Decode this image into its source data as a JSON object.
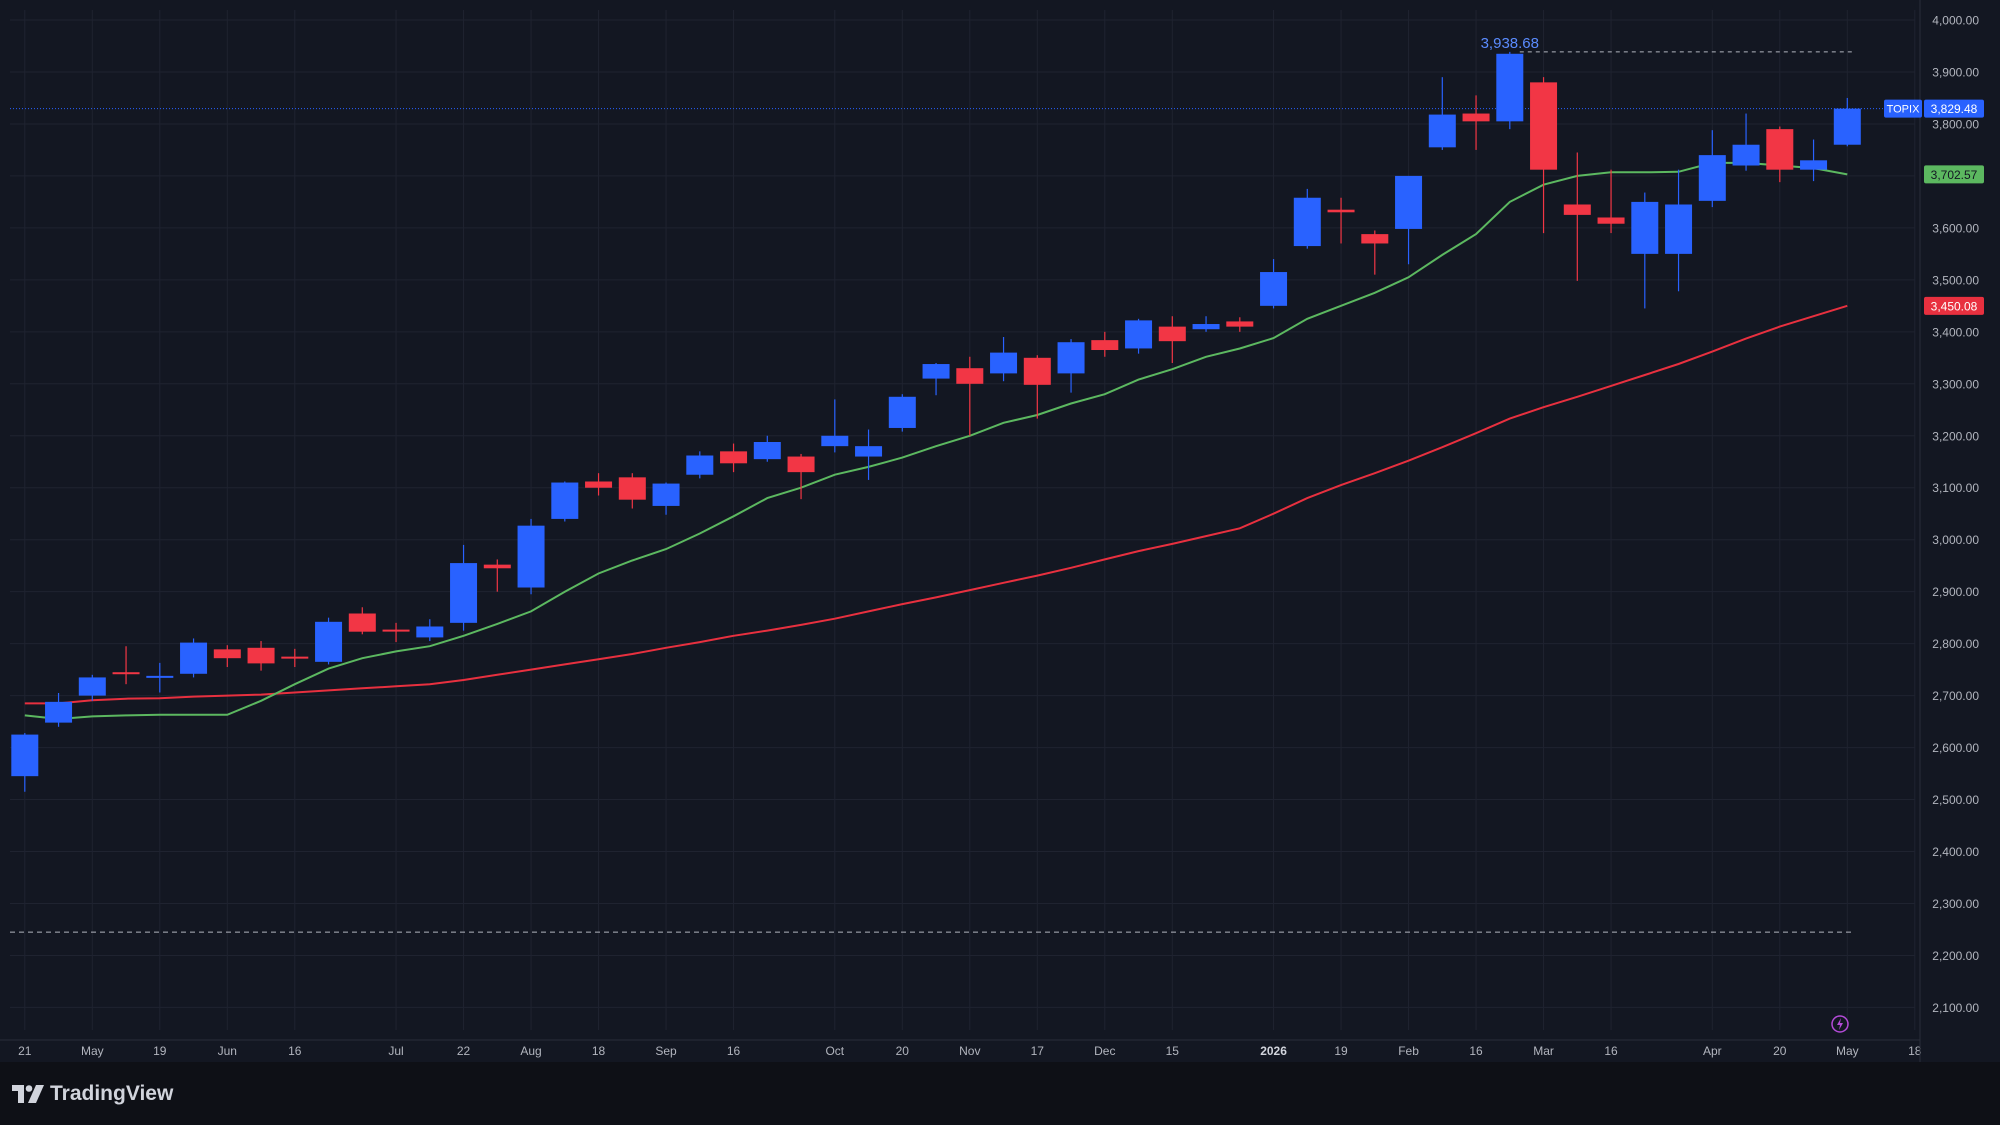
{
  "brand": {
    "name": "TradingView",
    "logo_icon": "tradingview-logo-icon"
  },
  "colors": {
    "background": "#131722",
    "grid": "#1f2330",
    "candle_up": "#2962ff",
    "candle_down": "#f23645",
    "ma_fast": "#5cb860",
    "ma_slow": "#e8303f",
    "axis_text": "#b2b5be"
  },
  "chart_data": {
    "type": "candlestick",
    "symbol": "TOPIX",
    "last_price": "3,829.48",
    "interval": "weekly",
    "ylim": [
      2060,
      4050
    ],
    "y_ticks": [
      "2,100.00",
      "2,200.00",
      "2,300.00",
      "2,400.00",
      "2,500.00",
      "2,600.00",
      "2,700.00",
      "2,800.00",
      "2,900.00",
      "3,000.00",
      "3,100.00",
      "3,200.00",
      "3,300.00",
      "3,400.00",
      "3,500.00",
      "3,600.00",
      "3,700.00",
      "3,800.00",
      "3,900.00",
      "4,000.00"
    ],
    "x_ticks": [
      {
        "label": "21",
        "index": 0
      },
      {
        "label": "May",
        "index": 2
      },
      {
        "label": "19",
        "index": 4
      },
      {
        "label": "Jun",
        "index": 6
      },
      {
        "label": "16",
        "index": 8
      },
      {
        "label": "Jul",
        "index": 11
      },
      {
        "label": "22",
        "index": 13
      },
      {
        "label": "Aug",
        "index": 15
      },
      {
        "label": "18",
        "index": 17
      },
      {
        "label": "Sep",
        "index": 19
      },
      {
        "label": "16",
        "index": 21
      },
      {
        "label": "Oct",
        "index": 24
      },
      {
        "label": "20",
        "index": 26
      },
      {
        "label": "Nov",
        "index": 28
      },
      {
        "label": "17",
        "index": 30
      },
      {
        "label": "Dec",
        "index": 32
      },
      {
        "label": "15",
        "index": 34
      },
      {
        "label": "2026",
        "index": 37
      },
      {
        "label": "19",
        "index": 39
      },
      {
        "label": "Feb",
        "index": 41
      },
      {
        "label": "16",
        "index": 43
      },
      {
        "label": "Mar",
        "index": 45
      },
      {
        "label": "16",
        "index": 47
      },
      {
        "label": "Apr",
        "index": 50
      },
      {
        "label": "20",
        "index": 52
      },
      {
        "label": "May",
        "index": 54
      },
      {
        "label": "18",
        "index": 56
      }
    ],
    "grid": true,
    "candles": [
      {
        "o": 2545,
        "h": 2628,
        "l": 2515,
        "c": 2625
      },
      {
        "o": 2648,
        "h": 2705,
        "l": 2640,
        "c": 2688
      },
      {
        "o": 2700,
        "h": 2740,
        "l": 2690,
        "c": 2735
      },
      {
        "o": 2745,
        "h": 2795,
        "l": 2722,
        "c": 2742
      },
      {
        "o": 2736,
        "h": 2763,
        "l": 2706,
        "c": 2738
      },
      {
        "o": 2742,
        "h": 2810,
        "l": 2735,
        "c": 2802
      },
      {
        "o": 2789,
        "h": 2797,
        "l": 2755,
        "c": 2772
      },
      {
        "o": 2792,
        "h": 2805,
        "l": 2748,
        "c": 2762
      },
      {
        "o": 2775,
        "h": 2790,
        "l": 2755,
        "c": 2772
      },
      {
        "o": 2765,
        "h": 2850,
        "l": 2760,
        "c": 2842
      },
      {
        "o": 2858,
        "h": 2870,
        "l": 2818,
        "c": 2823
      },
      {
        "o": 2827,
        "h": 2840,
        "l": 2803,
        "c": 2825
      },
      {
        "o": 2812,
        "h": 2847,
        "l": 2805,
        "c": 2833
      },
      {
        "o": 2840,
        "h": 2990,
        "l": 2825,
        "c": 2955
      },
      {
        "o": 2952,
        "h": 2962,
        "l": 2900,
        "c": 2945
      },
      {
        "o": 2908,
        "h": 3040,
        "l": 2895,
        "c": 3027
      },
      {
        "o": 3040,
        "h": 3112,
        "l": 3035,
        "c": 3110
      },
      {
        "o": 3112,
        "h": 3128,
        "l": 3085,
        "c": 3100
      },
      {
        "o": 3120,
        "h": 3128,
        "l": 3060,
        "c": 3077
      },
      {
        "o": 3065,
        "h": 3110,
        "l": 3048,
        "c": 3108
      },
      {
        "o": 3125,
        "h": 3170,
        "l": 3118,
        "c": 3162
      },
      {
        "o": 3170,
        "h": 3185,
        "l": 3130,
        "c": 3147
      },
      {
        "o": 3155,
        "h": 3200,
        "l": 3150,
        "c": 3188
      },
      {
        "o": 3160,
        "h": 3165,
        "l": 3078,
        "c": 3130
      },
      {
        "o": 3180,
        "h": 3270,
        "l": 3168,
        "c": 3200
      },
      {
        "o": 3160,
        "h": 3212,
        "l": 3115,
        "c": 3180
      },
      {
        "o": 3215,
        "h": 3280,
        "l": 3208,
        "c": 3275
      },
      {
        "o": 3310,
        "h": 3340,
        "l": 3278,
        "c": 3338
      },
      {
        "o": 3330,
        "h": 3352,
        "l": 3200,
        "c": 3300
      },
      {
        "o": 3320,
        "h": 3390,
        "l": 3305,
        "c": 3360
      },
      {
        "o": 3350,
        "h": 3355,
        "l": 3233,
        "c": 3298
      },
      {
        "o": 3320,
        "h": 3386,
        "l": 3283,
        "c": 3380
      },
      {
        "o": 3384,
        "h": 3400,
        "l": 3352,
        "c": 3365
      },
      {
        "o": 3368,
        "h": 3425,
        "l": 3358,
        "c": 3422
      },
      {
        "o": 3410,
        "h": 3430,
        "l": 3340,
        "c": 3382
      },
      {
        "o": 3405,
        "h": 3430,
        "l": 3400,
        "c": 3415
      },
      {
        "o": 3420,
        "h": 3428,
        "l": 3400,
        "c": 3410
      },
      {
        "o": 3450,
        "h": 3540,
        "l": 3445,
        "c": 3515
      },
      {
        "o": 3565,
        "h": 3675,
        "l": 3560,
        "c": 3658
      },
      {
        "o": 3635,
        "h": 3658,
        "l": 3570,
        "c": 3630
      },
      {
        "o": 3588,
        "h": 3595,
        "l": 3510,
        "c": 3570
      },
      {
        "o": 3598,
        "h": 3700,
        "l": 3530,
        "c": 3700
      },
      {
        "o": 3755,
        "h": 3890,
        "l": 3750,
        "c": 3818
      },
      {
        "o": 3820,
        "h": 3855,
        "l": 3750,
        "c": 3805
      },
      {
        "o": 3805,
        "h": 3938.68,
        "l": 3790,
        "c": 3935
      },
      {
        "o": 3880,
        "h": 3890,
        "l": 3590,
        "c": 3712
      },
      {
        "o": 3645,
        "h": 3745,
        "l": 3498,
        "c": 3625
      },
      {
        "o": 3620,
        "h": 3712,
        "l": 3590,
        "c": 3608
      },
      {
        "o": 3550,
        "h": 3668,
        "l": 3445,
        "c": 3650
      },
      {
        "o": 3550,
        "h": 3712,
        "l": 3478,
        "c": 3645
      },
      {
        "o": 3652,
        "h": 3788,
        "l": 3640,
        "c": 3740
      },
      {
        "o": 3720,
        "h": 3820,
        "l": 3710,
        "c": 3760
      },
      {
        "o": 3790,
        "h": 3795,
        "l": 3688,
        "c": 3712
      },
      {
        "o": 3712,
        "h": 3770,
        "l": 3690,
        "c": 3730
      },
      {
        "o": 3760,
        "h": 3850,
        "l": 3757,
        "c": 3829.48
      }
    ],
    "ma_fast": [
      2662,
      2655,
      2660,
      2662,
      2663,
      2663,
      2663,
      2690,
      2722,
      2752,
      2772,
      2785,
      2795,
      2815,
      2838,
      2862,
      2900,
      2935,
      2960,
      2982,
      3012,
      3045,
      3080,
      3100,
      3125,
      3140,
      3158,
      3180,
      3200,
      3225,
      3240,
      3262,
      3280,
      3308,
      3328,
      3352,
      3368,
      3388,
      3425,
      3450,
      3475,
      3505,
      3548,
      3588,
      3650,
      3683,
      3700,
      3707,
      3707,
      3708,
      3725,
      3725,
      3720,
      3715,
      3703
    ],
    "ma_slow": [
      2685,
      2685,
      2691,
      2694,
      2695,
      2698,
      2700,
      2702,
      2706,
      2710,
      2714,
      2718,
      2722,
      2730,
      2740,
      2750,
      2760,
      2770,
      2780,
      2792,
      2803,
      2815,
      2825,
      2836,
      2848,
      2862,
      2876,
      2889,
      2903,
      2917,
      2931,
      2946,
      2962,
      2978,
      2992,
      3007,
      3022,
      3050,
      3080,
      3105,
      3128,
      3152,
      3178,
      3205,
      3233,
      3255,
      3275,
      3296,
      3317,
      3338,
      3362,
      3387,
      3410,
      3430,
      3450
    ],
    "ma_fast_last": "3,702.57",
    "ma_slow_last": "3,450.08",
    "high_marker": {
      "value": 3938.68,
      "label": "3,938.68",
      "index": 44
    },
    "low_dashed_level": 2245
  }
}
